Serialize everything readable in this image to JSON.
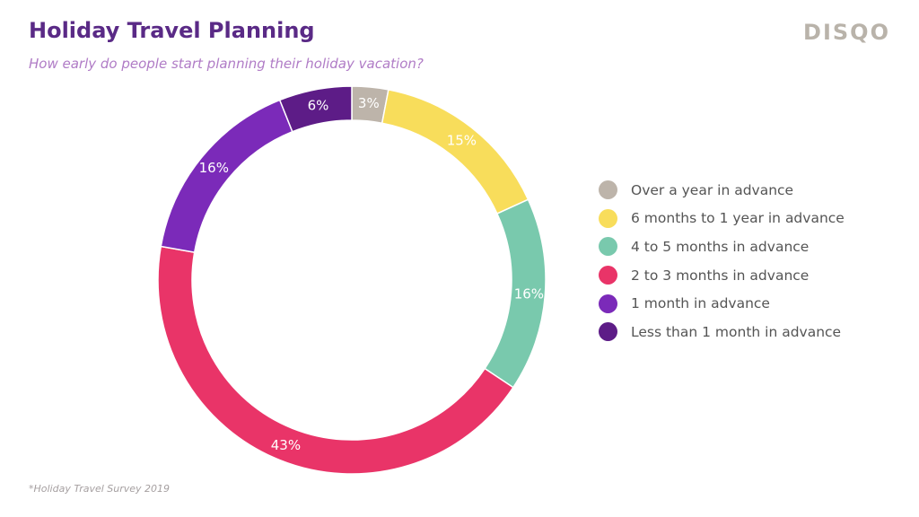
{
  "header": {
    "title": "Holiday Travel Planning",
    "subtitle": "How early do people start planning their holiday vacation?",
    "brand": "DISQO"
  },
  "footnote": "*Holiday Travel Survey 2019",
  "chart_data": {
    "type": "pie",
    "variant": "donut",
    "title": "Holiday Travel Planning",
    "subtitle": "How early do people start planning their holiday vacation?",
    "legend_position": "right",
    "slices": [
      {
        "label": "Over a year in advance",
        "value": 3,
        "display": "3%",
        "color": "#bdb4aa"
      },
      {
        "label": "6 months to 1 year in advance",
        "value": 15,
        "display": "15%",
        "color": "#f8dd5b"
      },
      {
        "label": "4 to 5 months in advance",
        "value": 16,
        "display": "16%",
        "color": "#79c9ad"
      },
      {
        "label": "2 to 3 months in advance",
        "value": 43,
        "display": "43%",
        "color": "#e93468"
      },
      {
        "label": "1 month in advance",
        "value": 16,
        "display": "16%",
        "color": "#7b2ab9"
      },
      {
        "label": "Less than 1 month in advance",
        "value": 6,
        "display": "6%",
        "color": "#5d1c87"
      }
    ]
  }
}
